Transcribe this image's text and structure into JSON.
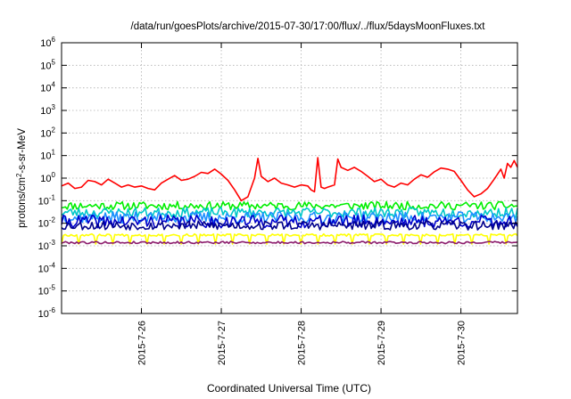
{
  "chart_data": {
    "type": "line",
    "title": "/data/run/goesPlots/archive/2015-07-30/17:00/flux/../flux/5daysMoonFluxes.txt",
    "xlabel": "Coordinated Universal Time (UTC)",
    "ylabel": "protons/cm²-s-sr-MeV",
    "y_scale": "log",
    "ylim": [
      1e-06,
      1000000.0
    ],
    "y_ticks": [
      {
        "value": 1e-06,
        "base": "10",
        "exp": "-6"
      },
      {
        "value": 1e-05,
        "base": "10",
        "exp": "-5"
      },
      {
        "value": 0.0001,
        "base": "10",
        "exp": "-4"
      },
      {
        "value": 0.001,
        "base": "10",
        "exp": "-3"
      },
      {
        "value": 0.01,
        "base": "10",
        "exp": "-2"
      },
      {
        "value": 0.1,
        "base": "10",
        "exp": "-1"
      },
      {
        "value": 1.0,
        "base": "10",
        "exp": "0"
      },
      {
        "value": 10.0,
        "base": "10",
        "exp": "1"
      },
      {
        "value": 100.0,
        "base": "10",
        "exp": "2"
      },
      {
        "value": 1000.0,
        "base": "10",
        "exp": "3"
      },
      {
        "value": 10000.0,
        "base": "10",
        "exp": "4"
      },
      {
        "value": 100000.0,
        "base": "10",
        "exp": "5"
      },
      {
        "value": 1000000.0,
        "base": "10",
        "exp": "6"
      }
    ],
    "xlim": [
      "2015-07-25T00:00",
      "2015-07-30T17:00"
    ],
    "x_ticks": [
      {
        "value": "2015-07-26T00:00",
        "label": "2015-7-26"
      },
      {
        "value": "2015-07-27T00:00",
        "label": "2015-7-27"
      },
      {
        "value": "2015-07-28T00:00",
        "label": "2015-7-28"
      },
      {
        "value": "2015-07-29T00:00",
        "label": "2015-7-29"
      },
      {
        "value": "2015-07-30T00:00",
        "label": "2015-7-30"
      }
    ],
    "grid": true,
    "series": [
      {
        "color": "#ff0000",
        "points": [
          [
            "2015-07-25T00:00",
            0.45
          ],
          [
            "2015-07-25T02:00",
            0.6
          ],
          [
            "2015-07-25T04:00",
            0.35
          ],
          [
            "2015-07-25T06:00",
            0.4
          ],
          [
            "2015-07-25T08:00",
            0.8
          ],
          [
            "2015-07-25T10:00",
            0.7
          ],
          [
            "2015-07-25T12:00",
            0.5
          ],
          [
            "2015-07-25T14:00",
            0.9
          ],
          [
            "2015-07-25T16:00",
            0.6
          ],
          [
            "2015-07-25T18:00",
            0.4
          ],
          [
            "2015-07-25T20:00",
            0.5
          ],
          [
            "2015-07-25T22:00",
            0.4
          ],
          [
            "2015-07-26T00:00",
            0.45
          ],
          [
            "2015-07-26T02:00",
            0.35
          ],
          [
            "2015-07-26T04:00",
            0.3
          ],
          [
            "2015-07-26T06:00",
            0.6
          ],
          [
            "2015-07-26T08:00",
            0.9
          ],
          [
            "2015-07-26T10:00",
            1.3
          ],
          [
            "2015-07-26T12:00",
            0.8
          ],
          [
            "2015-07-26T14:00",
            0.9
          ],
          [
            "2015-07-26T16:00",
            1.2
          ],
          [
            "2015-07-26T18:00",
            1.8
          ],
          [
            "2015-07-26T20:00",
            1.6
          ],
          [
            "2015-07-26T22:00",
            2.5
          ],
          [
            "2015-07-27T00:00",
            1.5
          ],
          [
            "2015-07-27T02:00",
            0.8
          ],
          [
            "2015-07-27T04:00",
            0.3
          ],
          [
            "2015-07-27T06:00",
            0.1
          ],
          [
            "2015-07-27T08:00",
            0.15
          ],
          [
            "2015-07-27T10:00",
            1.0
          ],
          [
            "2015-07-27T11:00",
            7.5
          ],
          [
            "2015-07-27T12:00",
            1.2
          ],
          [
            "2015-07-27T14:00",
            0.7
          ],
          [
            "2015-07-27T16:00",
            1.0
          ],
          [
            "2015-07-27T18:00",
            0.6
          ],
          [
            "2015-07-27T20:00",
            0.5
          ],
          [
            "2015-07-27T22:00",
            0.4
          ],
          [
            "2015-07-28T00:00",
            0.5
          ],
          [
            "2015-07-28T02:00",
            0.45
          ],
          [
            "2015-07-28T03:00",
            0.3
          ],
          [
            "2015-07-28T04:00",
            0.25
          ],
          [
            "2015-07-28T05:00",
            8.0
          ],
          [
            "2015-07-28T06:00",
            0.4
          ],
          [
            "2015-07-28T07:00",
            0.35
          ],
          [
            "2015-07-28T08:00",
            0.4
          ],
          [
            "2015-07-28T10:00",
            0.5
          ],
          [
            "2015-07-28T11:00",
            7.0
          ],
          [
            "2015-07-28T12:00",
            3.0
          ],
          [
            "2015-07-28T14:00",
            2.2
          ],
          [
            "2015-07-28T16:00",
            3.0
          ],
          [
            "2015-07-28T18:00",
            2.0
          ],
          [
            "2015-07-28T20:00",
            1.2
          ],
          [
            "2015-07-28T22:00",
            0.7
          ],
          [
            "2015-07-29T00:00",
            0.9
          ],
          [
            "2015-07-29T02:00",
            0.5
          ],
          [
            "2015-07-29T04:00",
            0.4
          ],
          [
            "2015-07-29T06:00",
            0.6
          ],
          [
            "2015-07-29T08:00",
            0.5
          ],
          [
            "2015-07-29T10:00",
            0.9
          ],
          [
            "2015-07-29T12:00",
            1.4
          ],
          [
            "2015-07-29T14:00",
            1.1
          ],
          [
            "2015-07-29T16:00",
            1.9
          ],
          [
            "2015-07-29T18:00",
            2.8
          ],
          [
            "2015-07-29T20:00",
            2.5
          ],
          [
            "2015-07-29T22:00",
            2.0
          ],
          [
            "2015-07-30T00:00",
            0.8
          ],
          [
            "2015-07-30T02:00",
            0.3
          ],
          [
            "2015-07-30T04:00",
            0.15
          ],
          [
            "2015-07-30T06:00",
            0.2
          ],
          [
            "2015-07-30T08:00",
            0.35
          ],
          [
            "2015-07-30T10:00",
            0.9
          ],
          [
            "2015-07-30T12:00",
            2.5
          ],
          [
            "2015-07-30T13:00",
            1.0
          ],
          [
            "2015-07-30T14:00",
            4.5
          ],
          [
            "2015-07-30T15:00",
            3.0
          ],
          [
            "2015-07-30T16:00",
            6.0
          ],
          [
            "2015-07-30T17:00",
            3.0
          ]
        ]
      },
      {
        "color": "#00ee00",
        "level": 0.06,
        "spread": 0.18,
        "drop_every": 0,
        "seed": 11
      },
      {
        "color": "#00c8c8",
        "level": 0.03,
        "spread": 0.22,
        "drop_every": 0,
        "seed": 23
      },
      {
        "color": "#1e90ff",
        "level": 0.018,
        "spread": 0.25,
        "drop_every": 0,
        "seed": 37
      },
      {
        "color": "#0000cc",
        "level": 0.012,
        "spread": 0.28,
        "drop_every": 0,
        "seed": 41
      },
      {
        "color": "#00008b",
        "level": 0.008,
        "spread": 0.2,
        "drop_every": 0,
        "seed": 53
      },
      {
        "color": "#ffff00",
        "level": 0.003,
        "spread": 0.05,
        "drop_every": 9,
        "seed": 67
      },
      {
        "color": "#8b1a6b",
        "level": 0.0014,
        "spread": 0.05,
        "drop_every": 0,
        "seed": 79
      }
    ]
  }
}
